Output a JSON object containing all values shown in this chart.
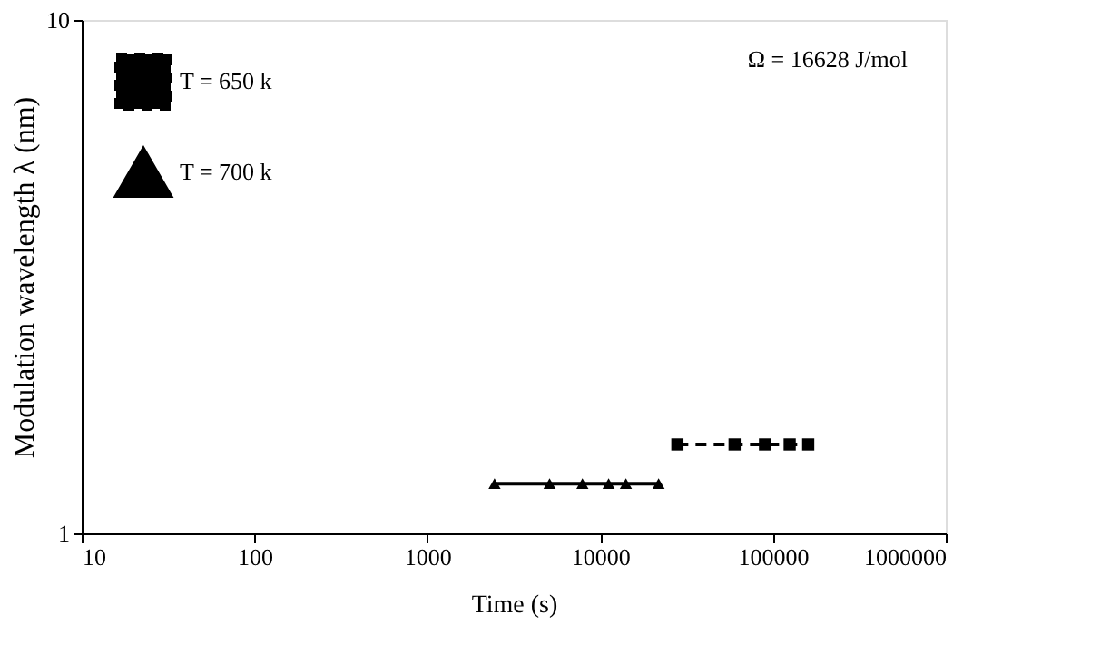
{
  "chart_data": {
    "type": "line",
    "xlabel": "Time (s)",
    "ylabel": "Modulation wavelength λ (nm)",
    "log": "xy",
    "xlim": [
      10,
      1000000
    ],
    "xticks": [
      10,
      100,
      1000,
      10000,
      100000,
      1000000
    ],
    "ylim": [
      1,
      10
    ],
    "yticks": [
      1,
      10
    ],
    "grid": false,
    "legend": "top left",
    "annotations": [
      "Ω = 16628 J/mol"
    ],
    "series": [
      {
        "name": "T = 650 k",
        "color": "#000000",
        "marker": "square",
        "line_style": "dashed",
        "x": [
          28000,
          60000,
          90000,
          125000,
          160000
        ],
        "values": [
          1.49,
          1.49,
          1.49,
          1.49,
          1.49
        ]
      },
      {
        "name": "T = 700 k",
        "color": "#000000",
        "marker": "triangle",
        "line_style": "solid",
        "x": [
          2450,
          5100,
          7900,
          11200,
          14100,
          21800
        ],
        "values": [
          1.25,
          1.25,
          1.25,
          1.25,
          1.25,
          1.25
        ]
      }
    ]
  }
}
